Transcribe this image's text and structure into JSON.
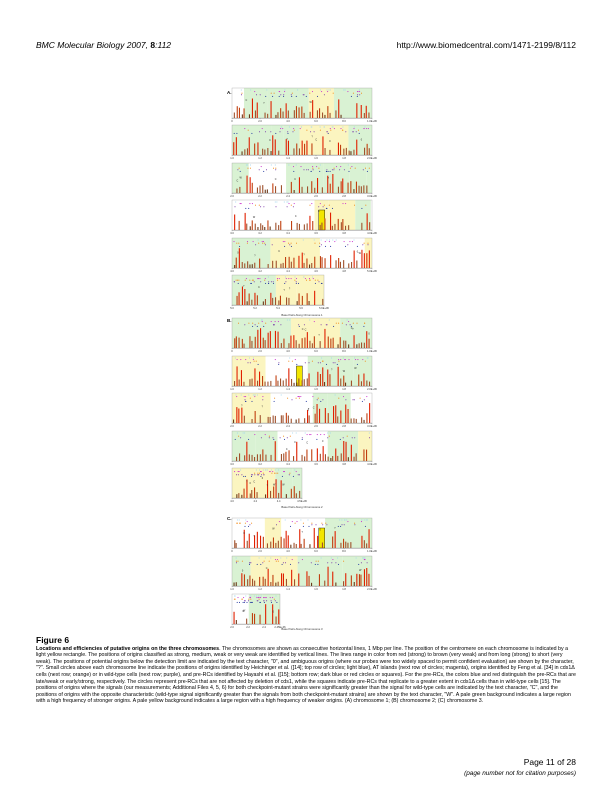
{
  "header": {
    "journal": "BMC Molecular Biology",
    "year": "2007,",
    "volume": "8",
    "article": ":112",
    "url": "http://www.biomedcentral.com/1471-2199/8/112"
  },
  "panels": [
    {
      "letter": "A.",
      "xlabel": "Base Pairs Along Chromosome 1",
      "rows": [
        {
          "ticks": [
            "0",
            "2.0",
            "4.0",
            "6.0",
            "8.0",
            "1.0E+06"
          ]
        },
        {
          "ticks": [
            "1.0",
            "1.2",
            "1.4",
            "1.6",
            "1.8",
            "2.0E+06"
          ]
        },
        {
          "ticks": [
            "2.0",
            "2.2",
            "2.4",
            "2.6",
            "2.8",
            "3.0E+06"
          ]
        },
        {
          "ticks": [
            "3.0",
            "3.2",
            "3.4",
            "3.6",
            "3.8",
            "4.0E+06"
          ]
        },
        {
          "ticks": [
            "4.0",
            "4.2",
            "4.4",
            "4.6",
            "4.8",
            "5.0E+06"
          ]
        },
        {
          "ticks": [
            "5.0",
            "5.2",
            "5.4",
            "5.6",
            "5.6E+06"
          ]
        }
      ]
    },
    {
      "letter": "B.",
      "xlabel": "Base Pairs Along Chromosome 2",
      "rows": [
        {
          "ticks": [
            "0",
            "2.0",
            "4.0",
            "6.0",
            "8.0",
            "1.0E+06"
          ]
        },
        {
          "ticks": [
            "1.0",
            "1.2",
            "1.4",
            "1.6",
            "1.8",
            "2.0E+06"
          ]
        },
        {
          "ticks": [
            "2.0",
            "2.2",
            "2.4",
            "2.6",
            "2.8",
            "3.0E+06"
          ]
        },
        {
          "ticks": [
            "3.0",
            "3.2",
            "3.4",
            "3.6",
            "3.8",
            "4.0E+06"
          ]
        },
        {
          "ticks": [
            "4.0",
            "4.2",
            "4.4",
            "4.5E+06"
          ]
        }
      ]
    },
    {
      "letter": "C.",
      "xlabel": "Base Pairs Along Chromosome 3",
      "rows": [
        {
          "ticks": [
            "0",
            "2.0",
            "4.0",
            "6.0",
            "8.0",
            "1.0E+06"
          ]
        },
        {
          "ticks": [
            "1.0",
            "1.2",
            "1.4",
            "1.6",
            "1.8",
            "2.0E+06"
          ]
        },
        {
          "ticks": [
            "2.0",
            "2.2",
            "2.4",
            "2.45E+06"
          ]
        }
      ]
    }
  ],
  "caption": {
    "title": "Figure 6",
    "lead": "Locations and efficiencies of putative origins on the three chromosomes",
    "body": ". The chromosomes are shown as consecutive horizontal lines, 1 Mbp per line. The position of the centromere on each chromosome is indicated by a light yellow rectangle. The positions of origins classified as strong, medium, weak or very weak are identified by vertical lines. The lines range in color from red (strong) to brown (very weak) and from long (strong) to short (very weak). The positions of potential origins below the detection limit are indicated by the text character, \"0\", and ambiguous origins (where our probes were too widely spaced to permit confident evaluation) are shown by the character, \"?\". Small circles above each chromosome line indicate the positions of origins identified by Heichinger et al. ([14]; top row of circles; light blue), AT islands (next row of circles; magenta), origins identified by Feng et al. [34] in cds1Δ cells (next row; orange) or in wild-type cells (next row; purple), and pre-RCs identified by Hayashi et al. ([15]; bottom row; dark blue or red circles or squares). For the pre-RCs, the colors blue and red distinguish the pre-RCs that are late/weak or early/strong, respectively. The circles represent pre-RCs that are not affected by deletion of cds1, while the squares indicate pre-RCs that replicate to a greater extent in cds1Δ cells than in wild-type cells [15]. The positions of origins where the signals (our measurements; Additional Files 4, 5, 6) for both checkpoint-mutant strains were significantly greater than the signal for wild-type cells are indicated by the text character, \"C\", and the positions of origins with the opposite characteristic (wild-type signal significantly greater than the signals from both checkpoint-mutant strains) are shown by the text character, \"W\". A pale green background indicates a large region with a high frequency of stronger origins. A pale yellow background indicates a large region with a high frequency of weaker origins. (A) chromosome 1; (B) chromosome 2; (C) chromosome 3."
  },
  "footer": {
    "page": "Page 11 of 28",
    "note": "(page number not for citation purposes)"
  },
  "colors": {
    "strong": "#e02000",
    "medium": "#c04010",
    "weak": "#a0522d",
    "very_weak": "#6b3a1a",
    "green_bg": "#d9f2d3",
    "yellow_bg": "#fbf5c0",
    "centromere": "#f2e600",
    "heichinger": "#9fd3ee",
    "at_island": "#cc33cc",
    "feng_cds1": "#f28c1a",
    "feng_wt": "#7a3aa8",
    "prerc_blue": "#1a2f9c",
    "prerc_red": "#d01010"
  }
}
